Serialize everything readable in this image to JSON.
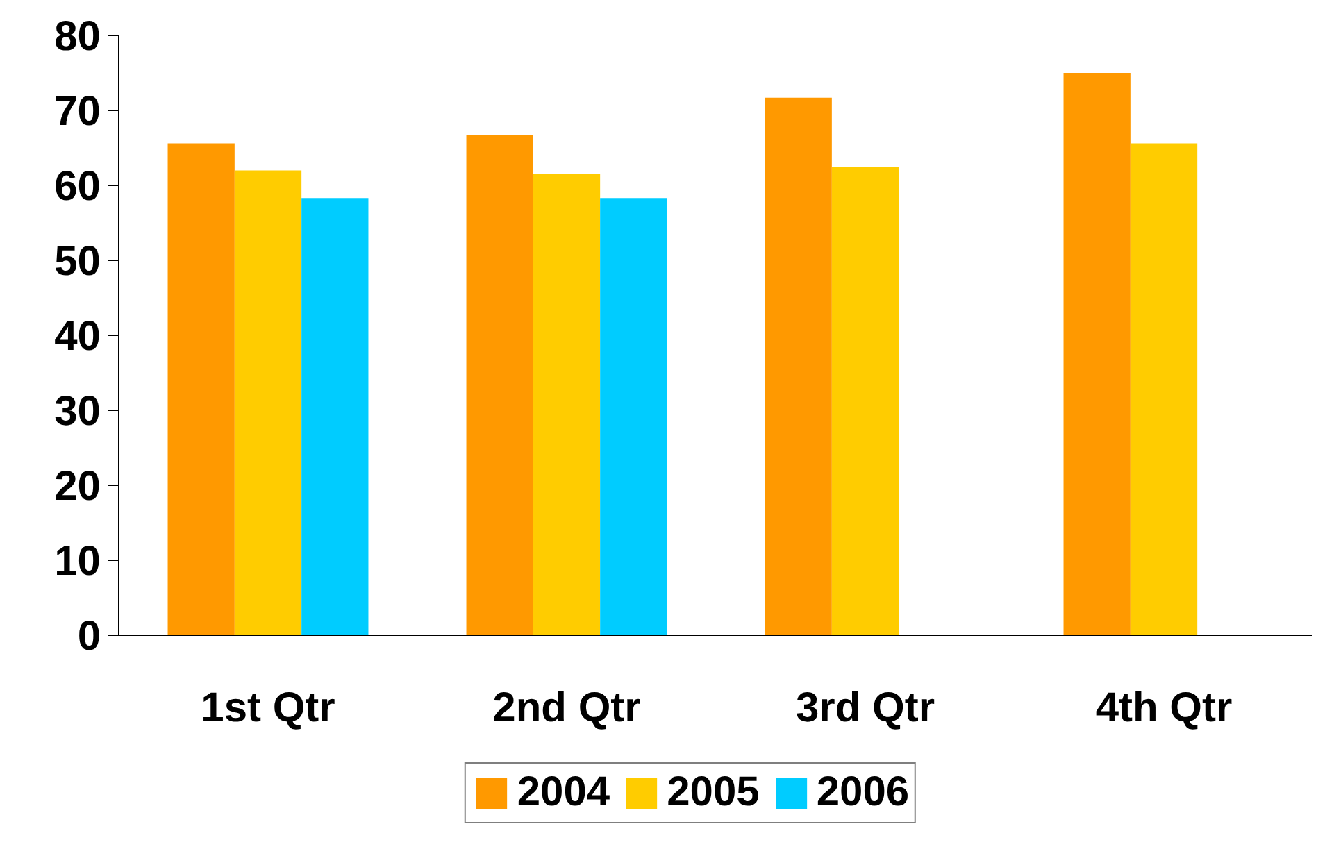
{
  "chart_data": {
    "type": "bar",
    "categories": [
      "1st Qtr",
      "2nd Qtr",
      "3rd Qtr",
      "4th Qtr"
    ],
    "series": [
      {
        "name": "2004",
        "color": "#ff9900",
        "values": [
          65.6,
          66.7,
          71.7,
          75.0
        ]
      },
      {
        "name": "2005",
        "color": "#ffcc00",
        "values": [
          62.0,
          61.5,
          62.4,
          65.6
        ]
      },
      {
        "name": "2006",
        "color": "#00ccff",
        "values": [
          58.3,
          58.3,
          null,
          null
        ]
      }
    ],
    "ylim": [
      0,
      80
    ],
    "yticks": [
      0,
      10,
      20,
      30,
      40,
      50,
      60,
      70,
      80
    ],
    "grid": false,
    "legend": "bottom"
  }
}
